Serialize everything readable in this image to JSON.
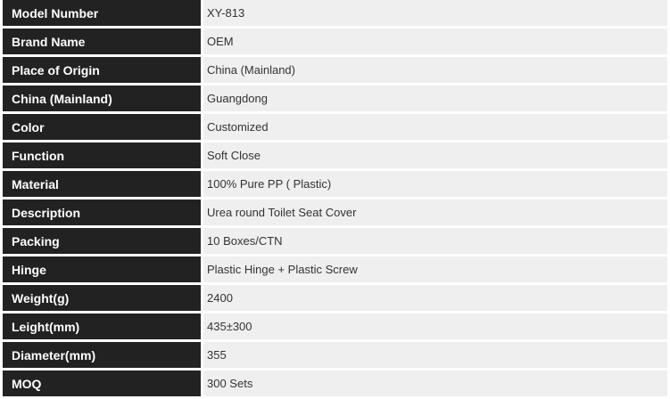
{
  "colors": {
    "label_bg": "#222222",
    "label_text": "#ffffff",
    "value_bg": "#efefef",
    "value_text": "#333333"
  },
  "rows": [
    {
      "label": "Model Number",
      "value": "XY-813"
    },
    {
      "label": "Brand Name",
      "value": "OEM"
    },
    {
      "label": "Place of Origin",
      "value": "China (Mainland)"
    },
    {
      "label": "China (Mainland)",
      "value": "Guangdong"
    },
    {
      "label": "Color",
      "value": "Customized"
    },
    {
      "label": "Function",
      "value": "Soft Close"
    },
    {
      "label": "Material",
      "value": "100% Pure PP ( Plastic)"
    },
    {
      "label": "Description",
      "value": "Urea round Toilet Seat Cover"
    },
    {
      "label": "Packing",
      "value": "10 Boxes/CTN"
    },
    {
      "label": "Hinge",
      "value": "Plastic Hinge + Plastic Screw"
    },
    {
      "label": "Weight(g)",
      "value": "2400"
    },
    {
      "label": "Leight(mm)",
      "value": "435±300"
    },
    {
      "label": "Diameter(mm)",
      "value": "355"
    },
    {
      "label": "MOQ",
      "value": "300 Sets"
    }
  ]
}
